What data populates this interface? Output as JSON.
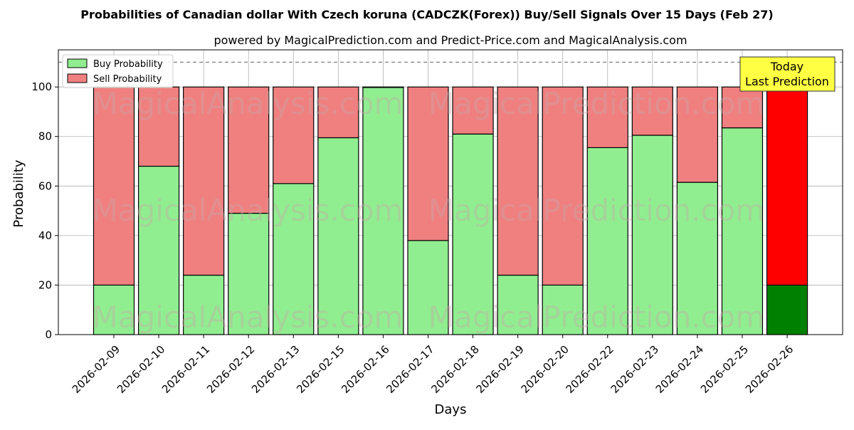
{
  "chart_data": {
    "type": "bar",
    "stacked": true,
    "title": "Probabilities of Canadian dollar With Czech koruna (CADCZK(Forex)) Buy/Sell Signals Over 15 Days (Feb 27)",
    "subtitle": "powered by MagicalPrediction.com and Predict-Price.com and MagicalAnalysis.com",
    "xlabel": "Days",
    "ylabel": "Probability",
    "ylim": [
      0,
      115
    ],
    "yticks": [
      0,
      20,
      40,
      60,
      80,
      100
    ],
    "grid": true,
    "legend_position": "top-left",
    "reference_line": 110,
    "categories": [
      "2026-02-09",
      "2026-02-10",
      "2026-02-11",
      "2026-02-12",
      "2026-02-13",
      "2026-02-15",
      "2026-02-16",
      "2026-02-17",
      "2026-02-18",
      "2026-02-19",
      "2026-02-20",
      "2026-02-22",
      "2026-02-23",
      "2026-02-24",
      "2026-02-25",
      "2026-02-26"
    ],
    "series": [
      {
        "name": "Buy Probability",
        "color": "#90ee90",
        "highlight_color": "#008000",
        "values": [
          20,
          68,
          24,
          49,
          61,
          79.5,
          99.8,
          38,
          81,
          24,
          20,
          75.5,
          80.5,
          61.5,
          83.5,
          20
        ]
      },
      {
        "name": "Sell Probability",
        "color": "#f08080",
        "highlight_color": "#ff0000",
        "values": [
          80,
          32,
          76,
          51,
          39,
          20.5,
          0.2,
          62,
          19,
          76,
          80,
          24.5,
          19.5,
          38.5,
          16.5,
          80
        ]
      }
    ],
    "annotation": {
      "lines": [
        "Today",
        "Last Prediction"
      ],
      "background": "#ffff44"
    },
    "watermarks": [
      "MagicalAnalysis.com",
      "MagicalPrediction.com"
    ]
  }
}
